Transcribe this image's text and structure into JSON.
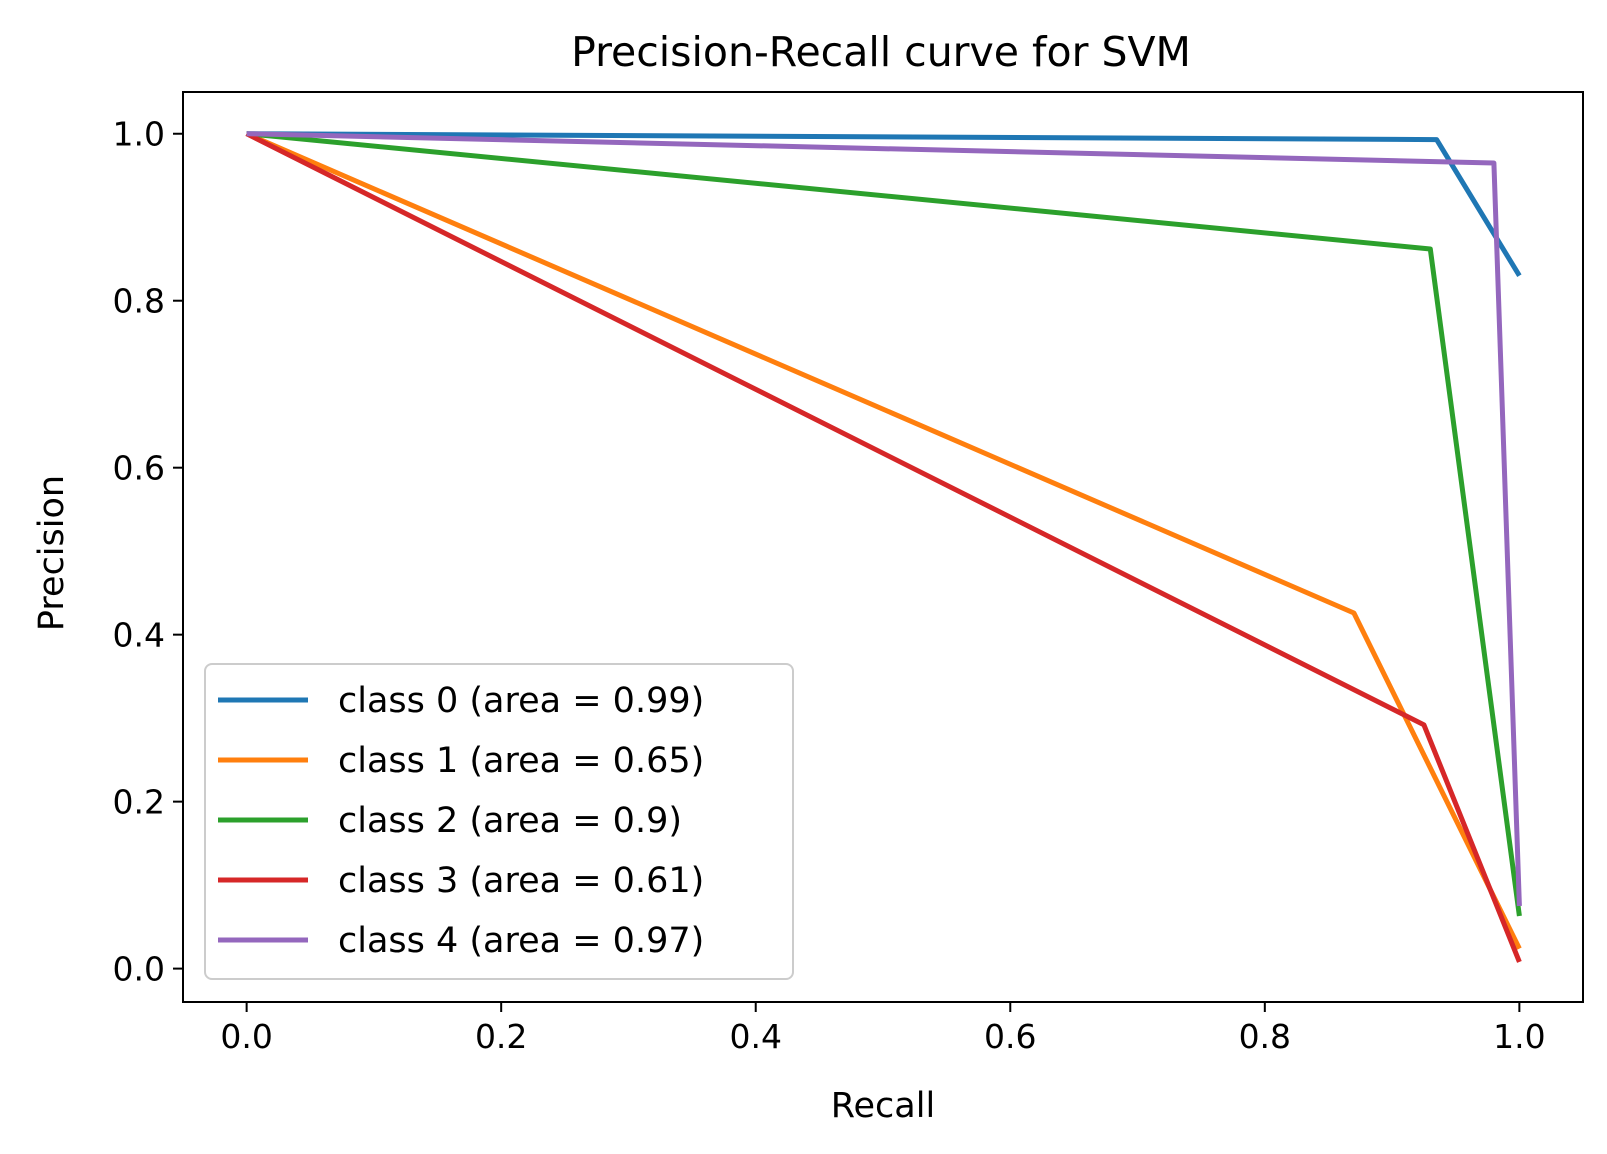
{
  "chart_data": {
    "type": "line",
    "title": "Precision-Recall curve for SVM",
    "xlabel": "Recall",
    "ylabel": "Precision",
    "xlim": [
      -0.05,
      1.05
    ],
    "ylim": [
      -0.04,
      1.05
    ],
    "xticks": [
      {
        "value": 0.0,
        "label": "0.0"
      },
      {
        "value": 0.2,
        "label": "0.2"
      },
      {
        "value": 0.4,
        "label": "0.4"
      },
      {
        "value": 0.6,
        "label": "0.6"
      },
      {
        "value": 0.8,
        "label": "0.8"
      },
      {
        "value": 1.0,
        "label": "1.0"
      }
    ],
    "yticks": [
      {
        "value": 0.0,
        "label": "0.0"
      },
      {
        "value": 0.2,
        "label": "0.2"
      },
      {
        "value": 0.4,
        "label": "0.4"
      },
      {
        "value": 0.6,
        "label": "0.6"
      },
      {
        "value": 0.8,
        "label": "0.8"
      },
      {
        "value": 1.0,
        "label": "1.0"
      }
    ],
    "grid": false,
    "legend_position": "lower-left",
    "series": [
      {
        "name": "class 0 (area = 0.99)",
        "color": "#1f77b4",
        "x": [
          0.0,
          0.935,
          1.0
        ],
        "y": [
          1.0,
          0.993,
          0.83
        ]
      },
      {
        "name": "class 1 (area = 0.65)",
        "color": "#ff7f0e",
        "x": [
          0.0,
          0.87,
          1.0
        ],
        "y": [
          1.0,
          0.426,
          0.024
        ]
      },
      {
        "name": "class 2 (area = 0.9)",
        "color": "#2ca02c",
        "x": [
          0.0,
          0.93,
          1.0
        ],
        "y": [
          1.0,
          0.862,
          0.063
        ]
      },
      {
        "name": "class 3 (area = 0.61)",
        "color": "#d62728",
        "x": [
          0.0,
          0.925,
          1.0
        ],
        "y": [
          1.0,
          0.292,
          0.008
        ]
      },
      {
        "name": "class 4 (area = 0.97)",
        "color": "#9467bd",
        "x": [
          0.0,
          0.98,
          1.0
        ],
        "y": [
          1.0,
          0.965,
          0.075
        ]
      }
    ]
  }
}
